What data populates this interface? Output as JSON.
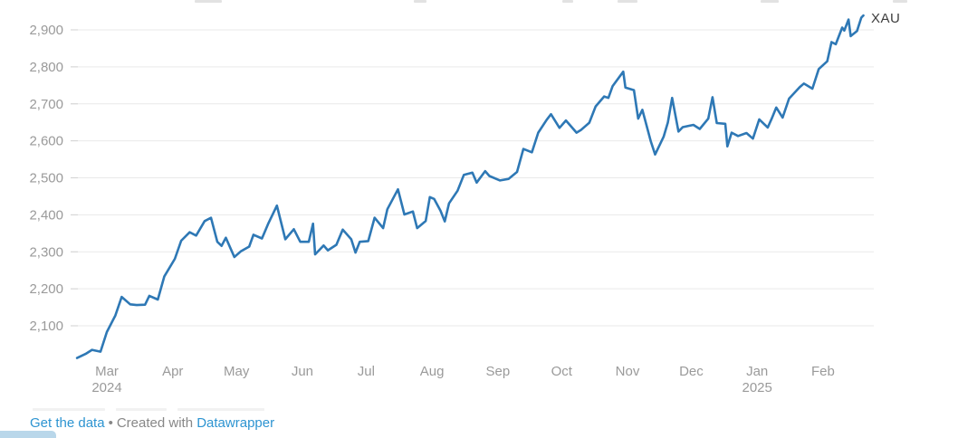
{
  "chart": {
    "series_label": "XAU",
    "line_color": "#2e78b5",
    "grid_color": "#e9e9e9",
    "tick_color": "#d2d2d2",
    "axis_text_color": "#9a9a9a",
    "series_label_color": "#3d3d3d"
  },
  "chart_data": {
    "type": "line",
    "title": "",
    "series_name": "XAU",
    "legend_position": "end-of-line",
    "grid": true,
    "ylim": [
      2000,
      2950
    ],
    "y_ticks": [
      {
        "value": 2100,
        "label": "2,100"
      },
      {
        "value": 2200,
        "label": "2,200"
      },
      {
        "value": 2300,
        "label": "2,300"
      },
      {
        "value": 2400,
        "label": "2,400"
      },
      {
        "value": 2500,
        "label": "2,500"
      },
      {
        "value": 2600,
        "label": "2,600"
      },
      {
        "value": 2700,
        "label": "2,700"
      },
      {
        "value": 2800,
        "label": "2,800"
      },
      {
        "value": 2900,
        "label": "2,900"
      }
    ],
    "x_ticks": [
      {
        "date": "2024-03-01",
        "label": "Mar",
        "year": "2024"
      },
      {
        "date": "2024-04-01",
        "label": "Apr",
        "year": ""
      },
      {
        "date": "2024-05-01",
        "label": "May",
        "year": ""
      },
      {
        "date": "2024-06-01",
        "label": "Jun",
        "year": ""
      },
      {
        "date": "2024-07-01",
        "label": "Jul",
        "year": ""
      },
      {
        "date": "2024-08-01",
        "label": "Aug",
        "year": ""
      },
      {
        "date": "2024-09-01",
        "label": "Sep",
        "year": ""
      },
      {
        "date": "2024-10-01",
        "label": "Oct",
        "year": ""
      },
      {
        "date": "2024-11-01",
        "label": "Nov",
        "year": ""
      },
      {
        "date": "2024-12-01",
        "label": "Dec",
        "year": ""
      },
      {
        "date": "2025-01-01",
        "label": "Jan",
        "year": "2025"
      },
      {
        "date": "2025-02-01",
        "label": "Feb",
        "year": ""
      }
    ],
    "points": [
      [
        "2024-02-16",
        2013
      ],
      [
        "2024-02-20",
        2024
      ],
      [
        "2024-02-23",
        2035
      ],
      [
        "2024-02-27",
        2030
      ],
      [
        "2024-03-01",
        2083
      ],
      [
        "2024-03-05",
        2128
      ],
      [
        "2024-03-08",
        2178
      ],
      [
        "2024-03-12",
        2158
      ],
      [
        "2024-03-15",
        2156
      ],
      [
        "2024-03-19",
        2157
      ],
      [
        "2024-03-21",
        2181
      ],
      [
        "2024-03-25",
        2171
      ],
      [
        "2024-03-28",
        2233
      ],
      [
        "2024-04-02",
        2281
      ],
      [
        "2024-04-05",
        2330
      ],
      [
        "2024-04-09",
        2353
      ],
      [
        "2024-04-12",
        2344
      ],
      [
        "2024-04-16",
        2383
      ],
      [
        "2024-04-19",
        2392
      ],
      [
        "2024-04-22",
        2327
      ],
      [
        "2024-04-24",
        2316
      ],
      [
        "2024-04-26",
        2338
      ],
      [
        "2024-04-30",
        2286
      ],
      [
        "2024-05-03",
        2301
      ],
      [
        "2024-05-07",
        2314
      ],
      [
        "2024-05-09",
        2346
      ],
      [
        "2024-05-13",
        2336
      ],
      [
        "2024-05-16",
        2377
      ],
      [
        "2024-05-20",
        2425
      ],
      [
        "2024-05-22",
        2379
      ],
      [
        "2024-05-24",
        2334
      ],
      [
        "2024-05-28",
        2361
      ],
      [
        "2024-05-31",
        2327
      ],
      [
        "2024-06-04",
        2327
      ],
      [
        "2024-06-06",
        2376
      ],
      [
        "2024-06-07",
        2293
      ],
      [
        "2024-06-11",
        2317
      ],
      [
        "2024-06-13",
        2304
      ],
      [
        "2024-06-17",
        2319
      ],
      [
        "2024-06-20",
        2360
      ],
      [
        "2024-06-24",
        2334
      ],
      [
        "2024-06-26",
        2298
      ],
      [
        "2024-06-28",
        2327
      ],
      [
        "2024-07-02",
        2329
      ],
      [
        "2024-07-05",
        2392
      ],
      [
        "2024-07-09",
        2364
      ],
      [
        "2024-07-11",
        2415
      ],
      [
        "2024-07-16",
        2469
      ],
      [
        "2024-07-19",
        2401
      ],
      [
        "2024-07-23",
        2409
      ],
      [
        "2024-07-25",
        2364
      ],
      [
        "2024-07-29",
        2383
      ],
      [
        "2024-07-31",
        2448
      ],
      [
        "2024-08-02",
        2443
      ],
      [
        "2024-08-05",
        2411
      ],
      [
        "2024-08-07",
        2382
      ],
      [
        "2024-08-09",
        2431
      ],
      [
        "2024-08-13",
        2465
      ],
      [
        "2024-08-16",
        2508
      ],
      [
        "2024-08-20",
        2514
      ],
      [
        "2024-08-22",
        2487
      ],
      [
        "2024-08-26",
        2518
      ],
      [
        "2024-08-28",
        2505
      ],
      [
        "2024-09-02",
        2493
      ],
      [
        "2024-09-06",
        2497
      ],
      [
        "2024-09-10",
        2516
      ],
      [
        "2024-09-13",
        2578
      ],
      [
        "2024-09-17",
        2569
      ],
      [
        "2024-09-20",
        2622
      ],
      [
        "2024-09-24",
        2657
      ],
      [
        "2024-09-26",
        2672
      ],
      [
        "2024-09-30",
        2635
      ],
      [
        "2024-10-03",
        2655
      ],
      [
        "2024-10-08",
        2622
      ],
      [
        "2024-10-10",
        2629
      ],
      [
        "2024-10-14",
        2649
      ],
      [
        "2024-10-17",
        2693
      ],
      [
        "2024-10-21",
        2720
      ],
      [
        "2024-10-23",
        2716
      ],
      [
        "2024-10-25",
        2748
      ],
      [
        "2024-10-30",
        2787
      ],
      [
        "2024-10-31",
        2744
      ],
      [
        "2024-11-04",
        2737
      ],
      [
        "2024-11-06",
        2660
      ],
      [
        "2024-11-08",
        2684
      ],
      [
        "2024-11-12",
        2598
      ],
      [
        "2024-11-14",
        2563
      ],
      [
        "2024-11-18",
        2611
      ],
      [
        "2024-11-20",
        2650
      ],
      [
        "2024-11-22",
        2716
      ],
      [
        "2024-11-25",
        2625
      ],
      [
        "2024-11-27",
        2637
      ],
      [
        "2024-12-02",
        2643
      ],
      [
        "2024-12-05",
        2632
      ],
      [
        "2024-12-09",
        2660
      ],
      [
        "2024-12-11",
        2718
      ],
      [
        "2024-12-13",
        2648
      ],
      [
        "2024-12-17",
        2646
      ],
      [
        "2024-12-18",
        2585
      ],
      [
        "2024-12-20",
        2622
      ],
      [
        "2024-12-23",
        2613
      ],
      [
        "2024-12-27",
        2621
      ],
      [
        "2024-12-30",
        2606
      ],
      [
        "2025-01-02",
        2658
      ],
      [
        "2025-01-06",
        2636
      ],
      [
        "2025-01-08",
        2662
      ],
      [
        "2025-01-10",
        2690
      ],
      [
        "2025-01-13",
        2663
      ],
      [
        "2025-01-16",
        2714
      ],
      [
        "2025-01-21",
        2745
      ],
      [
        "2025-01-23",
        2755
      ],
      [
        "2025-01-27",
        2741
      ],
      [
        "2025-01-30",
        2794
      ],
      [
        "2025-02-03",
        2815
      ],
      [
        "2025-02-05",
        2867
      ],
      [
        "2025-02-07",
        2861
      ],
      [
        "2025-02-10",
        2906
      ],
      [
        "2025-02-11",
        2898
      ],
      [
        "2025-02-13",
        2928
      ],
      [
        "2025-02-14",
        2883
      ],
      [
        "2025-02-17",
        2897
      ],
      [
        "2025-02-19",
        2933
      ],
      [
        "2025-02-20",
        2939
      ]
    ]
  },
  "footer": {
    "get_data_link": "Get the data",
    "separator": "•",
    "credit_text": "Created with",
    "credit_link": "Datawrapper"
  }
}
